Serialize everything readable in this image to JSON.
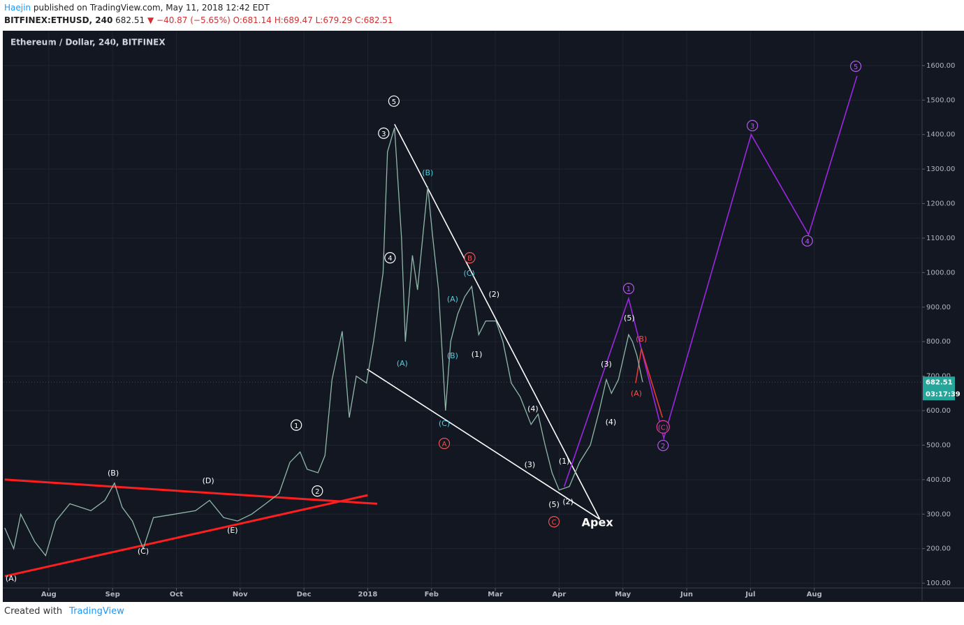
{
  "header": {
    "author": "Haejin",
    "published": "published on TradingView.com, May 11, 2018 12:42 EDT",
    "symbol": "BITFINEX:ETHUSD, 240",
    "price": "682.51",
    "change": "▼ −40.87 (−5.65%)",
    "open": "O:681.14",
    "high": "H:689.47",
    "low": "L:679.29",
    "close": "C:682.51"
  },
  "footer": {
    "created": "Created with",
    "brand": "TradingView"
  },
  "chart_data": {
    "type": "line",
    "legend_text": "Ethereum / Dollar, 240, BITFINEX",
    "xlim": [
      0.29,
      14.69
    ],
    "ylim": [
      86,
      1699
    ],
    "xticks": [
      {
        "value": 1,
        "label": "Aug"
      },
      {
        "value": 2,
        "label": "Sep"
      },
      {
        "value": 3,
        "label": "Oct"
      },
      {
        "value": 4,
        "label": "Nov"
      },
      {
        "value": 5,
        "label": "Dec"
      },
      {
        "value": 6,
        "label": "2018"
      },
      {
        "value": 7,
        "label": "Feb"
      },
      {
        "value": 8,
        "label": "Mar"
      },
      {
        "value": 9,
        "label": "Apr"
      },
      {
        "value": 10,
        "label": "May"
      },
      {
        "value": 11,
        "label": "Jun"
      },
      {
        "value": 12,
        "label": "Jul"
      },
      {
        "value": 13,
        "label": "Aug"
      }
    ],
    "yticks": [
      {
        "value": 100,
        "label": "100.00"
      },
      {
        "value": 200,
        "label": "200.00"
      },
      {
        "value": 300,
        "label": "300.00"
      },
      {
        "value": 400,
        "label": "400.00"
      },
      {
        "value": 500,
        "label": "500.00"
      },
      {
        "value": 600,
        "label": "600.00"
      },
      {
        "value": 700,
        "label": "700.00"
      },
      {
        "value": 800,
        "label": "800.00"
      },
      {
        "value": 900,
        "label": "900.00"
      },
      {
        "value": 1000,
        "label": "1000.00"
      },
      {
        "value": 1100,
        "label": "1100.00"
      },
      {
        "value": 1200,
        "label": "1200.00"
      },
      {
        "value": 1300,
        "label": "1300.00"
      },
      {
        "value": 1400,
        "label": "1400.00"
      },
      {
        "value": 1500,
        "label": "1500.00"
      },
      {
        "value": 1600,
        "label": "1600.00"
      }
    ],
    "grid": true,
    "last_price": 682.51,
    "last_price_color": "#26a69a",
    "countdown": "03:17:39",
    "series": [
      {
        "name": "Ethereum / Dollar, 240, BITFINEX",
        "color": "#8fb8a8",
        "x": [
          0.31,
          0.45,
          0.56,
          0.78,
          0.95,
          1.11,
          1.33,
          1.66,
          1.88,
          2.03,
          2.15,
          2.31,
          2.48,
          2.64,
          2.97,
          3.3,
          3.52,
          3.74,
          3.96,
          4.18,
          4.4,
          4.61,
          4.78,
          4.94,
          5.05,
          5.22,
          5.33,
          5.44,
          5.6,
          5.71,
          5.82,
          5.98,
          6.09,
          6.24,
          6.31,
          6.42,
          6.53,
          6.59,
          6.7,
          6.78,
          6.86,
          6.94,
          7.02,
          7.11,
          7.22,
          7.3,
          7.41,
          7.52,
          7.63,
          7.74,
          7.85,
          8.01,
          8.12,
          8.25,
          8.39,
          8.56,
          8.67,
          8.78,
          8.89,
          9.0,
          9.16,
          9.32,
          9.49,
          9.63,
          9.74,
          9.82,
          9.93,
          10.09,
          10.15,
          10.22,
          10.31
        ],
        "values": [
          260,
          200,
          300,
          220,
          180,
          280,
          330,
          310,
          340,
          390,
          320,
          280,
          200,
          290,
          300,
          310,
          340,
          290,
          280,
          300,
          330,
          360,
          450,
          480,
          430,
          420,
          470,
          690,
          830,
          580,
          700,
          680,
          800,
          1000,
          1350,
          1420,
          1100,
          800,
          1050,
          950,
          1100,
          1250,
          1100,
          950,
          600,
          800,
          880,
          930,
          960,
          820,
          860,
          860,
          800,
          680,
          640,
          560,
          590,
          500,
          420,
          370,
          380,
          450,
          500,
          600,
          690,
          650,
          690,
          820,
          800,
          760,
          682.51
        ]
      }
    ],
    "drawings": [
      {
        "color": "#ffffff",
        "x": [
          6.42,
          9.64
        ],
        "values": [
          1430,
          285
        ]
      },
      {
        "color": "#ffffff",
        "x": [
          5.99,
          9.64
        ],
        "values": [
          720,
          285
        ]
      },
      {
        "color": "#ff1e1e",
        "x": [
          0.31,
          6.15
        ],
        "values": [
          400,
          330
        ]
      },
      {
        "color": "#ff1e1e",
        "x": [
          0.31,
          6.0
        ],
        "values": [
          120,
          355
        ]
      },
      {
        "color": "#9c27e0",
        "x": [
          9.08,
          10.09,
          10.64,
          12.01,
          12.91,
          13.67
        ],
        "values": [
          380,
          925,
          520,
          1400,
          1110,
          1570
        ]
      },
      {
        "color": "#e53935",
        "x": [
          10.2,
          10.29,
          10.62
        ],
        "values": [
          680,
          780,
          580
        ]
      }
    ],
    "annotations": [
      {
        "text": "5",
        "circled": true,
        "color": "#ffffff",
        "x": 6.41,
        "y": 1497
      },
      {
        "text": "3",
        "circled": true,
        "color": "#ffffff",
        "x": 6.25,
        "y": 1404
      },
      {
        "text": "4",
        "circled": true,
        "color": "#ffffff",
        "x": 6.35,
        "y": 1043
      },
      {
        "text": "1",
        "circled": true,
        "color": "#ffffff",
        "x": 4.88,
        "y": 558
      },
      {
        "text": "2",
        "circled": true,
        "color": "#ffffff",
        "x": 5.21,
        "y": 367
      },
      {
        "text": "(A)",
        "circled": false,
        "color": "#ffffff",
        "x": 0.41,
        "y": 114
      },
      {
        "text": "(B)",
        "circled": false,
        "color": "#ffffff",
        "x": 2.01,
        "y": 420
      },
      {
        "text": "(C)",
        "circled": false,
        "color": "#ffffff",
        "x": 2.48,
        "y": 193
      },
      {
        "text": "(D)",
        "circled": false,
        "color": "#ffffff",
        "x": 3.5,
        "y": 398
      },
      {
        "text": "(E)",
        "circled": false,
        "color": "#ffffff",
        "x": 3.88,
        "y": 254
      },
      {
        "text": "(1)",
        "circled": false,
        "color": "#ffffff",
        "x": 7.71,
        "y": 764
      },
      {
        "text": "(2)",
        "circled": false,
        "color": "#ffffff",
        "x": 7.98,
        "y": 938
      },
      {
        "text": "(3)",
        "circled": false,
        "color": "#ffffff",
        "x": 8.54,
        "y": 444
      },
      {
        "text": "(4)",
        "circled": false,
        "color": "#ffffff",
        "x": 8.59,
        "y": 606
      },
      {
        "text": "(5)",
        "circled": false,
        "color": "#ffffff",
        "x": 8.92,
        "y": 329
      },
      {
        "text": "(1)",
        "circled": false,
        "color": "#ffffff",
        "x": 9.08,
        "y": 454
      },
      {
        "text": "(2)",
        "circled": false,
        "color": "#ffffff",
        "x": 9.14,
        "y": 337
      },
      {
        "text": "(3)",
        "circled": false,
        "color": "#ffffff",
        "x": 9.74,
        "y": 736
      },
      {
        "text": "(4)",
        "circled": false,
        "color": "#ffffff",
        "x": 9.81,
        "y": 568
      },
      {
        "text": "(5)",
        "circled": false,
        "color": "#ffffff",
        "x": 10.1,
        "y": 869
      },
      {
        "text": "(A)",
        "circled": false,
        "color": "#4dd0e1",
        "x": 6.54,
        "y": 738
      },
      {
        "text": "(B)",
        "circled": false,
        "color": "#4dd0e1",
        "x": 6.94,
        "y": 1290
      },
      {
        "text": "(C)",
        "circled": false,
        "color": "#4dd0e1",
        "x": 7.59,
        "y": 999
      },
      {
        "text": "(A)",
        "circled": false,
        "color": "#4dd0e1",
        "x": 7.33,
        "y": 924
      },
      {
        "text": "(B)",
        "circled": false,
        "color": "#4dd0e1",
        "x": 7.33,
        "y": 760
      },
      {
        "text": "(C)",
        "circled": false,
        "color": "#4dd0e1",
        "x": 7.2,
        "y": 564
      },
      {
        "text": "A",
        "circled": true,
        "color": "#ef5350",
        "x": 7.2,
        "y": 505
      },
      {
        "text": "B",
        "circled": true,
        "color": "#ef5350",
        "x": 7.6,
        "y": 1043
      },
      {
        "text": "C",
        "circled": true,
        "color": "#ef5350",
        "x": 8.92,
        "y": 278
      },
      {
        "text": "(A)",
        "circled": false,
        "color": "#ef5350",
        "x": 10.21,
        "y": 651
      },
      {
        "text": "(B)",
        "circled": false,
        "color": "#ef5350",
        "x": 10.29,
        "y": 809
      },
      {
        "text": "(C)",
        "circled": true,
        "color": "#e040a0",
        "x": 10.63,
        "y": 553
      },
      {
        "text": "1",
        "circled": true,
        "color": "#b05ce8",
        "x": 10.09,
        "y": 954
      },
      {
        "text": "2",
        "circled": true,
        "color": "#b05ce8",
        "x": 10.63,
        "y": 499
      },
      {
        "text": "3",
        "circled": true,
        "color": "#b05ce8",
        "x": 12.03,
        "y": 1426
      },
      {
        "text": "4",
        "circled": true,
        "color": "#b05ce8",
        "x": 12.89,
        "y": 1092
      },
      {
        "text": "5",
        "circled": true,
        "color": "#b05ce8",
        "x": 13.65,
        "y": 1598
      },
      {
        "text": "Apex",
        "circled": false,
        "bold": true,
        "color": "#ffffff",
        "x": 9.6,
        "y": 276
      }
    ]
  }
}
